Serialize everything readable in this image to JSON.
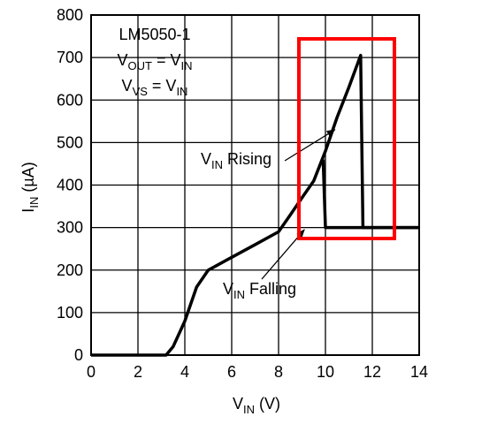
{
  "chart_data": {
    "type": "line",
    "title": "",
    "x_axis": {
      "label": "V",
      "label_sub": "IN",
      "label_suffix": " (V)",
      "range": [
        0,
        14
      ],
      "ticks": [
        0,
        2,
        4,
        6,
        8,
        10,
        12,
        14
      ]
    },
    "y_axis": {
      "label": "I",
      "label_sub": "IN",
      "label_suffix": " (µA)",
      "range": [
        0,
        800
      ],
      "ticks": [
        0,
        100,
        200,
        300,
        400,
        500,
        600,
        700,
        800
      ]
    },
    "grid": true,
    "series": [
      {
        "direction": "rising",
        "points": [
          [
            0,
            0
          ],
          [
            3.2,
            0
          ],
          [
            3.5,
            20
          ],
          [
            4.0,
            80
          ],
          [
            4.5,
            160
          ],
          [
            5.0,
            200
          ],
          [
            6.0,
            230
          ],
          [
            7.0,
            260
          ],
          [
            8.0,
            290
          ],
          [
            8.5,
            330
          ],
          [
            9.0,
            370
          ],
          [
            9.5,
            410
          ],
          [
            10.0,
            480
          ],
          [
            10.5,
            560
          ],
          [
            11.0,
            630
          ],
          [
            11.5,
            705
          ],
          [
            11.6,
            300
          ],
          [
            14.0,
            300
          ]
        ]
      },
      {
        "direction": "falling",
        "points": [
          [
            14.0,
            300
          ],
          [
            10.0,
            300
          ],
          [
            9.9,
            460
          ]
        ]
      }
    ],
    "annotations": {
      "device": "LM5050-1",
      "cond1": {
        "lhs": "V",
        "lhs_sub": "OUT",
        "op": " = ",
        "rhs": "V",
        "rhs_sub": "IN"
      },
      "cond2": {
        "lhs": "V",
        "lhs_sub": "VS",
        "op": " = ",
        "rhs": "V",
        "rhs_sub": "IN"
      },
      "rising": {
        "v": "V",
        "sub": "IN",
        "text": " Rising"
      },
      "falling": {
        "v": "V",
        "sub": "IN",
        "text": " Falling"
      }
    },
    "highlight_box": {
      "color": "#ff0000"
    },
    "line_color": "#000000"
  }
}
